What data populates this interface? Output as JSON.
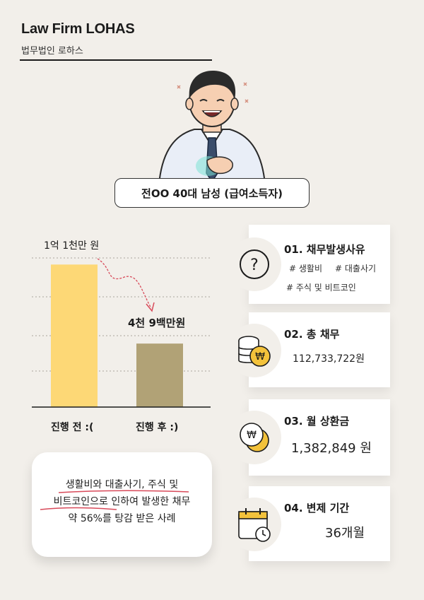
{
  "brand": {
    "title": "Law Firm LOHAS",
    "subtitle": "법무법인 로하스"
  },
  "caption": "전OO 40대 남성 (급여소득자)",
  "chart_data": {
    "type": "bar",
    "categories": [
      "진행 전 :(",
      "진행 후 :)"
    ],
    "values": [
      110000000,
      49000000
    ],
    "value_labels": [
      "1억 1천만 원",
      "4천 9백만원"
    ],
    "colors": [
      "#fdd876",
      "#b1a276"
    ],
    "ylim": [
      0,
      120000000
    ],
    "grid": true
  },
  "summary": {
    "line1": "생활비와 대출사기, 주식 및",
    "line2": "비트코인으로 인하여 발생한 채무",
    "line3": "약 56%를 탕감 받은 사례"
  },
  "cards": [
    {
      "title": "01. 채무발생사유",
      "icon": "question-icon",
      "tags": [
        "# 생활비",
        "# 대출사기",
        "# 주식 및 비트코인"
      ]
    },
    {
      "title": "02. 총 채무",
      "icon": "coins-icon",
      "value": "112,733,722원"
    },
    {
      "title": "03. 월 상환금",
      "icon": "won-coin-icon",
      "value": "1,382,849 원"
    },
    {
      "title": "04. 변제 기간",
      "icon": "calendar-icon",
      "value": "36개월"
    }
  ]
}
